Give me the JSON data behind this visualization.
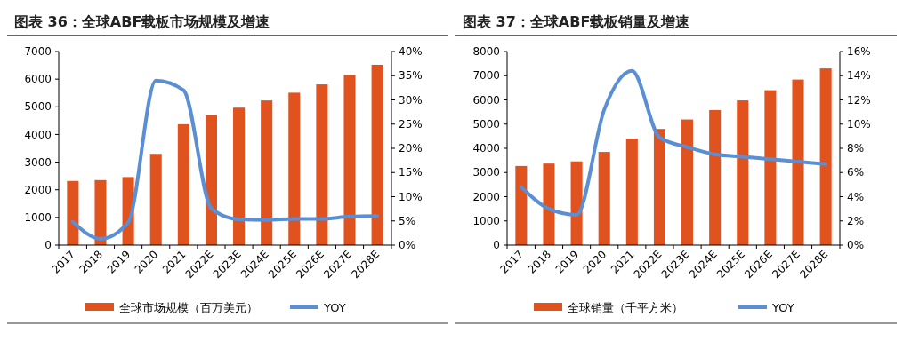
{
  "chart_data": [
    {
      "type": "bar",
      "title": "图表 36：全球ABF载板市场规模及增速",
      "categories": [
        "2017",
        "2018",
        "2019",
        "2020",
        "2021",
        "2022E",
        "2023E",
        "2024E",
        "2025E",
        "2026E",
        "2027E",
        "2028E"
      ],
      "ylim": [
        0,
        7000
      ],
      "yticks": [
        0,
        1000,
        2000,
        3000,
        4000,
        5000,
        6000,
        7000
      ],
      "y2lim": [
        0,
        40
      ],
      "y2ticks": [
        {
          "value": 0,
          "label": "0%"
        },
        {
          "value": 5,
          "label": "5%"
        },
        {
          "value": 10,
          "label": "10%"
        },
        {
          "value": 15,
          "label": "15%"
        },
        {
          "value": 20,
          "label": "20%"
        },
        {
          "value": 25,
          "label": "25%"
        },
        {
          "value": 30,
          "label": "30%"
        },
        {
          "value": 35,
          "label": "35%"
        },
        {
          "value": 40,
          "label": "40%"
        }
      ],
      "legend": "bottom",
      "series": [
        {
          "name": "全球市场规模（百万美元）",
          "color": "#e0531f",
          "values": [
            2320,
            2350,
            2460,
            3300,
            4370,
            4720,
            4970,
            5230,
            5510,
            5810,
            6150,
            6520
          ]
        },
        {
          "name": "YOY",
          "type": "line",
          "axis": "y2",
          "color": "#5b8fd4",
          "values": [
            4.8,
            1.3,
            4.7,
            34,
            32,
            7.6,
            5.3,
            5.2,
            5.4,
            5.4,
            5.9,
            6.0
          ]
        }
      ]
    },
    {
      "type": "bar",
      "title": "图表 37：全球ABF载板销量及增速",
      "categories": [
        "2017",
        "2018",
        "2019",
        "2020",
        "2021",
        "2022E",
        "2023E",
        "2024E",
        "2025E",
        "2026E",
        "2027E",
        "2028E"
      ],
      "ylim": [
        0,
        8000
      ],
      "yticks": [
        0,
        1000,
        2000,
        3000,
        4000,
        5000,
        6000,
        7000,
        8000
      ],
      "y2lim": [
        0,
        16
      ],
      "y2ticks": [
        {
          "value": 0,
          "label": "0%"
        },
        {
          "value": 2,
          "label": "2%"
        },
        {
          "value": 4,
          "label": "4%"
        },
        {
          "value": 6,
          "label": "6%"
        },
        {
          "value": 8,
          "label": "8%"
        },
        {
          "value": 10,
          "label": "10%"
        },
        {
          "value": 12,
          "label": "12%"
        },
        {
          "value": 14,
          "label": "14%"
        },
        {
          "value": 16,
          "label": "16%"
        }
      ],
      "legend": "bottom",
      "series": [
        {
          "name": "全球销量（千平方米）",
          "color": "#e0531f",
          "values": [
            3270,
            3370,
            3460,
            3850,
            4400,
            4800,
            5190,
            5580,
            5980,
            6400,
            6840,
            7300
          ]
        },
        {
          "name": "YOY",
          "type": "line",
          "axis": "y2",
          "color": "#5b8fd4",
          "values": [
            4.8,
            3.0,
            2.5,
            11.2,
            14.4,
            8.9,
            8.1,
            7.5,
            7.3,
            7.1,
            6.9,
            6.7
          ]
        }
      ]
    }
  ]
}
